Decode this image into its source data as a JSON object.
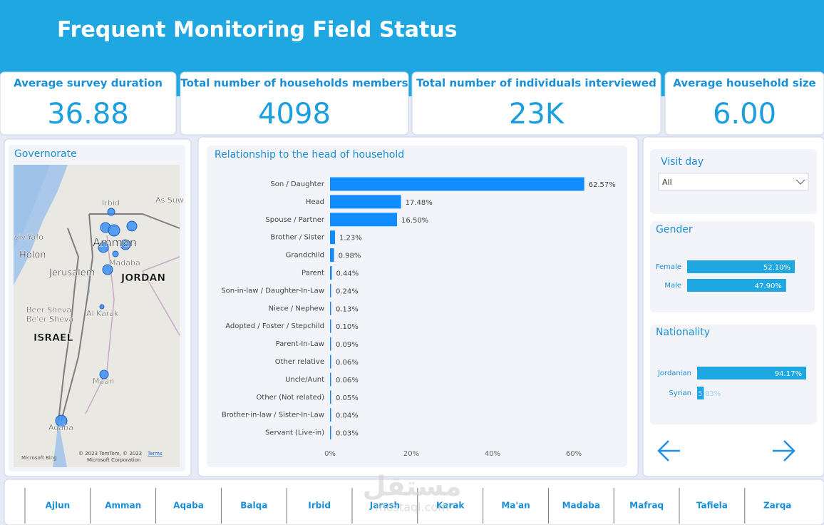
{
  "header": {
    "title": "Frequent Monitoring Field Status"
  },
  "kpis": [
    {
      "label": "Average survey duration",
      "value": "36.88"
    },
    {
      "label": "Total number of households members",
      "value": "4098"
    },
    {
      "label": "Total number of individuals interviewed",
      "value": "23K"
    },
    {
      "label": "Average household size",
      "value": "6.00"
    }
  ],
  "map": {
    "title": "Governorate",
    "labels": [
      "Irbid",
      "As Suw",
      "viv-Yafo",
      "Holon",
      "Amman",
      "Madaba",
      "Jerusalem",
      "JORDAN",
      "Beer Sheva",
      "Be'er Sheva",
      "Al Karak",
      "ISRAEL",
      "Maan",
      "Aqaba"
    ],
    "attribution": "© 2023 TomTom, © 2023",
    "attribution2": "Microsoft Corporation",
    "terms": "Terms",
    "provider": "Microsoft Bing"
  },
  "slicer": {
    "title": "Visit day",
    "value": "All"
  },
  "chart_data": [
    {
      "type": "hbar",
      "title": "Relationship to the head of household",
      "categories": [
        "Son / Daughter",
        "Head",
        "Spouse / Partner",
        "Brother / Sister",
        "Grandchild",
        "Parent",
        "Son-in-law / Daughter-In-Law",
        "Niece / Nephew",
        "Adopted / Foster / Stepchild",
        "Parent-In-Law",
        "Other relative",
        "Uncle/Aunt",
        "Other (Not related)",
        "Brother-in-law / Sister-In-Law",
        "Servant (Live-in)"
      ],
      "values": [
        62.57,
        17.48,
        16.5,
        1.23,
        0.98,
        0.44,
        0.24,
        0.13,
        0.1,
        0.09,
        0.06,
        0.06,
        0.05,
        0.04,
        0.03
      ],
      "value_labels": [
        "62.57%",
        "17.48%",
        "16.50%",
        "1.23%",
        "0.98%",
        "0.44%",
        "0.24%",
        "0.13%",
        "0.10%",
        "0.09%",
        "0.06%",
        "0.06%",
        "0.05%",
        "0.04%",
        "0.03%"
      ],
      "color": "#118dff",
      "xlim": [
        0,
        70
      ],
      "xticks": [
        {
          "value": 0,
          "label": "0%"
        },
        {
          "value": 20,
          "label": "20%"
        },
        {
          "value": 40,
          "label": "40%"
        },
        {
          "value": 60,
          "label": "60%"
        }
      ]
    },
    {
      "type": "pbar",
      "title": "Gender",
      "categories": [
        "Female",
        "Male"
      ],
      "values": [
        52.1,
        47.9
      ],
      "value_labels": [
        "52.10%",
        "47.90%"
      ],
      "color": "#1ea7e1"
    },
    {
      "type": "pbar",
      "title": "Nationality",
      "categories": [
        "Jordanian",
        "Syrian"
      ],
      "values": [
        94.17,
        5.83
      ],
      "value_labels": [
        "94.17%",
        "5.83%"
      ],
      "color": "#1ea7e1"
    }
  ],
  "footer": {
    "buttons": [
      "Ajlun",
      "Amman",
      "Aqaba",
      "Balqa",
      "Irbid",
      "Jarash",
      "Karak",
      "Ma'an",
      "Madaba",
      "Mafraq",
      "Tafiela",
      "Zarqa"
    ]
  },
  "watermark": {
    "arabic": "مستقل",
    "latin": "mostaql.com"
  }
}
